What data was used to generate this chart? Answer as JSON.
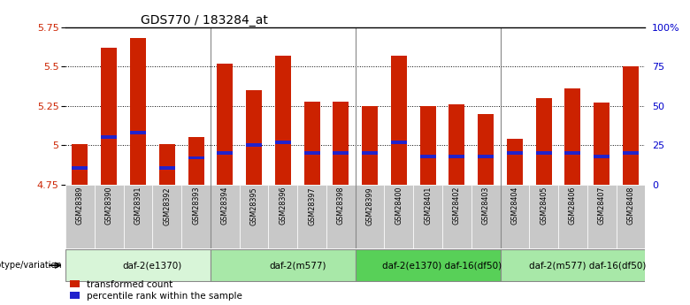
{
  "title": "GDS770 / 183284_at",
  "samples": [
    "GSM28389",
    "GSM28390",
    "GSM28391",
    "GSM28392",
    "GSM28393",
    "GSM28394",
    "GSM28395",
    "GSM28396",
    "GSM28397",
    "GSM28398",
    "GSM28399",
    "GSM28400",
    "GSM28401",
    "GSM28402",
    "GSM28403",
    "GSM28404",
    "GSM28405",
    "GSM28406",
    "GSM28407",
    "GSM28408"
  ],
  "red_values": [
    5.01,
    5.62,
    5.68,
    5.01,
    5.05,
    5.52,
    5.35,
    5.57,
    5.28,
    5.28,
    5.25,
    5.57,
    5.25,
    5.26,
    5.2,
    5.04,
    5.3,
    5.36,
    5.27,
    5.5
  ],
  "blue_values": [
    4.855,
    5.05,
    5.08,
    4.855,
    4.92,
    4.95,
    5.0,
    5.02,
    4.95,
    4.95,
    4.95,
    5.02,
    4.93,
    4.93,
    4.93,
    4.95,
    4.95,
    4.95,
    4.93,
    4.95
  ],
  "ymin": 4.75,
  "ymax": 5.75,
  "yticks": [
    4.75,
    5.0,
    5.25,
    5.5,
    5.75
  ],
  "ytick_labels": [
    "4.75",
    "5",
    "5.25",
    "5.5",
    "5.75"
  ],
  "right_yticks": [
    0,
    25,
    50,
    75,
    100
  ],
  "right_ytick_labels": [
    "0",
    "25",
    "50",
    "75",
    "100%"
  ],
  "groups": [
    {
      "label": "daf-2(e1370)",
      "start": 0,
      "end": 5,
      "color": "#d8f5d8"
    },
    {
      "label": "daf-2(m577)",
      "start": 5,
      "end": 10,
      "color": "#a8e8a8"
    },
    {
      "label": "daf-2(e1370) daf-16(df50)",
      "start": 10,
      "end": 15,
      "color": "#58d058"
    },
    {
      "label": "daf-2(m577) daf-16(df50)",
      "start": 15,
      "end": 20,
      "color": "#a8e8a8"
    }
  ],
  "bar_color": "#cc2200",
  "blue_color": "#2222cc",
  "bar_width": 0.55,
  "tick_color_left": "#cc2200",
  "tick_color_right": "#0000cc",
  "genotype_label": "genotype/variation",
  "legend_red": "transformed count",
  "legend_blue": "percentile rank within the sample",
  "sample_bg": "#c8c8c8",
  "dotted_grid_color": "#000000",
  "group_border_color": "#888888",
  "group_separator_color": "#888888"
}
